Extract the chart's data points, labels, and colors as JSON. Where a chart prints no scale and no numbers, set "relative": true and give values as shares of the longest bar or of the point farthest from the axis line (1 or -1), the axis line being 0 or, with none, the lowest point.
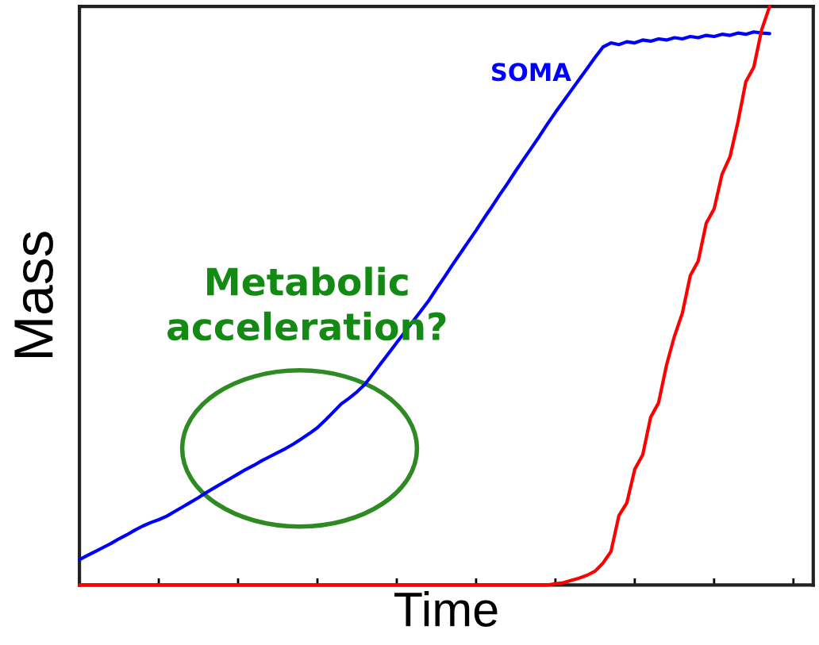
{
  "chart_data": {
    "type": "line",
    "relative": true,
    "xlabel": "Time",
    "ylabel": "Mass",
    "grid": false,
    "legend": false,
    "annotations": [
      "Metabolic acceleration?"
    ],
    "categories": [
      null,
      null,
      null,
      null,
      null,
      null,
      null,
      null,
      null,
      null,
      null,
      null,
      null,
      null,
      null,
      null,
      null,
      null,
      null,
      null,
      null,
      null,
      null,
      null,
      null,
      null,
      null,
      null,
      null,
      null,
      null,
      null,
      null,
      null,
      null,
      null,
      null,
      null,
      null,
      null,
      null,
      null,
      null,
      null,
      null,
      null,
      null,
      null,
      null,
      null,
      null,
      null,
      null,
      null,
      null,
      null,
      null,
      null,
      null,
      null,
      null,
      null,
      null,
      null,
      null,
      null,
      null,
      null,
      null,
      null,
      null,
      null,
      null,
      null,
      null,
      null,
      null,
      null,
      null,
      null,
      null,
      null,
      null,
      null,
      null,
      null,
      null,
      null,
      null,
      null,
      null,
      null,
      null
    ],
    "series": [
      {
        "name": "SOMA",
        "color": "#0000ff",
        "values": [
          0.044,
          0.051,
          0.058,
          0.065,
          0.072,
          0.08,
          0.087,
          0.095,
          0.102,
          0.108,
          0.113,
          0.119,
          0.127,
          0.135,
          0.143,
          0.151,
          0.16,
          0.168,
          0.176,
          0.184,
          0.192,
          0.2,
          0.207,
          0.215,
          0.222,
          0.229,
          0.236,
          0.244,
          0.253,
          0.262,
          0.272,
          0.285,
          0.299,
          0.313,
          0.323,
          0.334,
          0.347,
          0.365,
          0.383,
          0.401,
          0.419,
          0.437,
          0.455,
          0.473,
          0.491,
          0.512,
          0.532,
          0.553,
          0.573,
          0.593,
          0.613,
          0.634,
          0.654,
          0.675,
          0.695,
          0.716,
          0.736,
          0.756,
          0.776,
          0.797,
          0.817,
          0.836,
          0.855,
          0.874,
          0.893,
          0.912,
          0.93,
          0.937,
          0.934,
          0.939,
          0.937,
          0.942,
          0.94,
          0.944,
          0.942,
          0.946,
          0.944,
          0.948,
          0.946,
          0.95,
          0.948,
          0.952,
          0.95,
          0.954,
          0.952,
          0.956,
          0.954,
          0.953,
          null,
          null,
          null,
          null,
          null
        ]
      },
      {
        "color": "#ff0000",
        "values": [
          0,
          0,
          0,
          0,
          0,
          0,
          0,
          0,
          0,
          0,
          0,
          0,
          0,
          0,
          0,
          0,
          0,
          0,
          0,
          0,
          0,
          0,
          0,
          0,
          0,
          0,
          0,
          0,
          0,
          0,
          0,
          0,
          0,
          0,
          0,
          0,
          0,
          0,
          0,
          0,
          0,
          0,
          0,
          0,
          0,
          0,
          0,
          0,
          0,
          0,
          0,
          0,
          0,
          0,
          0,
          0,
          0,
          0,
          0,
          0,
          0.002,
          0.004,
          0.008,
          0.012,
          0.017,
          0.024,
          0.038,
          0.058,
          0.12,
          0.142,
          0.2,
          0.225,
          0.29,
          0.315,
          0.38,
          0.43,
          0.47,
          0.535,
          0.56,
          0.625,
          0.65,
          0.71,
          0.74,
          0.8,
          0.87,
          0.895,
          0.96,
          1,
          null,
          null,
          null,
          null,
          null
        ]
      }
    ]
  }
}
